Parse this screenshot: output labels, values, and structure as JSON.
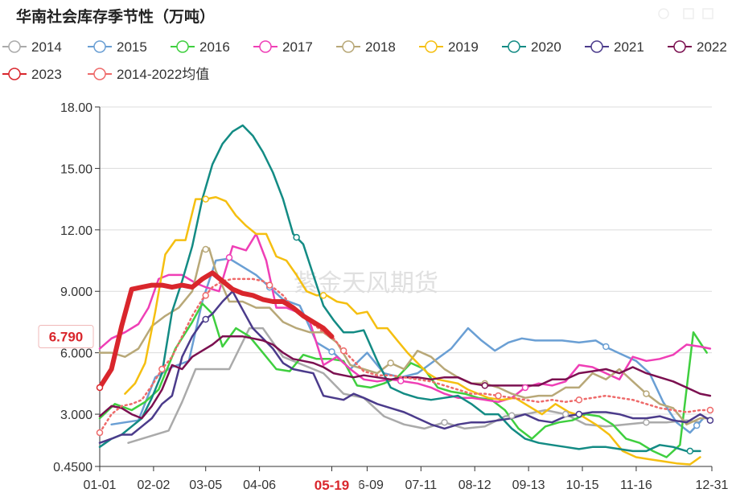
{
  "chart_data": {
    "type": "line",
    "title": "华南社会库存季节性（万吨）",
    "watermark": "紫金天风期货",
    "ylim": [
      0.45,
      18.0
    ],
    "y_ticks": [
      "18.00",
      "15.00",
      "12.00",
      "9.000",
      "6.000",
      "3.000",
      "0.4500"
    ],
    "y_tick_values": [
      18.0,
      15.0,
      12.0,
      9.0,
      6.0,
      3.0,
      0.45
    ],
    "x_tick_labels": [
      "01-01",
      "02-02",
      "03-05",
      "04-06",
      "05-19",
      "06-09",
      "07-11",
      "08-12",
      "09-13",
      "10-15",
      "11-16",
      "12-31"
    ],
    "x_tick_days": [
      1,
      33,
      64,
      96,
      139,
      160,
      192,
      224,
      256,
      288,
      320,
      365
    ],
    "highlight_x_label": "05-19",
    "highlight_y_label": "6.790",
    "legend_row1": [
      "2014",
      "2015",
      "2016",
      "2017",
      "2018",
      "2019",
      "2020",
      "2021",
      "2022"
    ],
    "legend_row2": [
      "2023",
      "2014-2022均值"
    ],
    "series": [
      {
        "name": "2014",
        "color": "#aaaaaa",
        "width": 2.5,
        "dash": false,
        "x": [
          18,
          42,
          50,
          58,
          66,
          78,
          90,
          98,
          110,
          122,
          134,
          146,
          158,
          170,
          182,
          194,
          206,
          218,
          230,
          242,
          254,
          266,
          278,
          290,
          302,
          314,
          326,
          338,
          350,
          358
        ],
        "y": [
          1.6,
          2.2,
          3.6,
          5.2,
          5.2,
          5.2,
          7.2,
          7.2,
          5.8,
          5.4,
          5.0,
          4.0,
          3.8,
          2.9,
          2.5,
          2.3,
          2.6,
          2.3,
          2.4,
          2.9,
          3.0,
          3.2,
          3.0,
          2.5,
          2.4,
          2.5,
          2.6,
          2.6,
          2.7,
          2.6
        ]
      },
      {
        "name": "2015",
        "color": "#6a9fd4",
        "width": 2.5,
        "dash": false,
        "x": [
          8,
          16,
          24,
          34,
          44,
          54,
          62,
          70,
          78,
          86,
          94,
          102,
          110,
          120,
          130,
          140,
          150,
          160,
          170,
          180,
          190,
          200,
          210,
          220,
          228,
          236,
          244,
          252,
          260,
          268,
          276,
          286,
          296,
          304,
          312,
          320,
          328,
          336,
          344,
          352,
          360
        ],
        "y": [
          2.5,
          2.6,
          2.7,
          4.8,
          5.3,
          5.6,
          8.5,
          10.5,
          10.6,
          10.2,
          9.8,
          9.2,
          8.6,
          8.3,
          6.5,
          6.0,
          5.2,
          6.0,
          5.0,
          4.8,
          5.0,
          5.6,
          6.2,
          7.2,
          6.6,
          6.1,
          6.5,
          6.7,
          6.6,
          6.6,
          6.6,
          6.5,
          6.6,
          6.2,
          5.9,
          5.6,
          5.0,
          3.6,
          2.6,
          2.1,
          2.8
        ]
      },
      {
        "name": "2016",
        "color": "#3fcf3f",
        "width": 2.5,
        "dash": false,
        "x": [
          1,
          10,
          20,
          28,
          36,
          46,
          56,
          62,
          68,
          74,
          82,
          90,
          98,
          106,
          114,
          122,
          130,
          138,
          146,
          154,
          162,
          170,
          178,
          186,
          194,
          202,
          210,
          218,
          226,
          234,
          242,
          250,
          258,
          266,
          274,
          282,
          290,
          298,
          306,
          314,
          322,
          330,
          338,
          346,
          354,
          362
        ],
        "y": [
          2.8,
          3.5,
          3.2,
          3.6,
          4.2,
          6.2,
          7.5,
          8.4,
          7.9,
          6.3,
          7.2,
          6.8,
          6.0,
          5.2,
          5.1,
          5.9,
          5.7,
          5.7,
          5.6,
          4.4,
          4.3,
          4.5,
          4.8,
          5.5,
          5.2,
          4.3,
          4.1,
          4.0,
          3.8,
          3.7,
          3.2,
          2.3,
          1.8,
          2.4,
          2.6,
          2.7,
          3.0,
          2.9,
          2.5,
          1.8,
          1.6,
          1.2,
          0.9,
          1.5,
          7.0,
          6.0
        ]
      },
      {
        "name": "2017",
        "color": "#ef3fb6",
        "width": 2.5,
        "dash": false,
        "x": [
          1,
          8,
          16,
          24,
          30,
          36,
          42,
          50,
          58,
          64,
          72,
          80,
          88,
          94,
          100,
          106,
          112,
          118,
          126,
          134,
          142,
          150,
          158,
          166,
          174,
          182,
          190,
          198,
          206,
          214,
          222,
          230,
          238,
          246,
          254,
          262,
          270,
          278,
          286,
          294,
          302,
          310,
          318,
          326,
          334,
          342,
          350,
          358,
          364
        ],
        "y": [
          6.2,
          6.7,
          7.0,
          7.4,
          8.2,
          9.6,
          9.8,
          9.8,
          9.4,
          9.2,
          9.0,
          11.2,
          11.0,
          11.8,
          10.5,
          8.2,
          8.2,
          8.0,
          7.5,
          5.4,
          5.8,
          5.2,
          4.7,
          4.6,
          4.7,
          4.6,
          4.5,
          4.3,
          4.0,
          3.8,
          3.8,
          3.7,
          3.6,
          3.8,
          4.3,
          4.5,
          4.4,
          4.6,
          5.4,
          5.3,
          5.0,
          4.7,
          5.8,
          5.6,
          5.7,
          5.9,
          6.4,
          6.3,
          6.2
        ]
      },
      {
        "name": "2018",
        "color": "#b8a878",
        "width": 2.5,
        "dash": false,
        "x": [
          1,
          8,
          16,
          24,
          32,
          40,
          48,
          56,
          62,
          66,
          70,
          78,
          86,
          94,
          102,
          110,
          118,
          126,
          134,
          142,
          150,
          158,
          166,
          174,
          182,
          190,
          198,
          206,
          214,
          222,
          230,
          238,
          246,
          254,
          262,
          270,
          278,
          286,
          294,
          302,
          310,
          318,
          326,
          334,
          342,
          350,
          358,
          364
        ],
        "y": [
          6.0,
          6.0,
          5.8,
          6.2,
          7.3,
          7.8,
          8.2,
          9.0,
          11.0,
          11.1,
          10.0,
          8.5,
          8.5,
          8.2,
          8.2,
          7.5,
          7.2,
          7.0,
          7.0,
          6.5,
          5.4,
          5.2,
          5.0,
          5.5,
          5.2,
          6.1,
          5.8,
          5.2,
          4.8,
          4.5,
          4.5,
          4.3,
          4.0,
          3.8,
          3.9,
          3.9,
          4.3,
          4.3,
          5.0,
          4.7,
          5.2,
          4.6,
          4.0,
          3.5,
          3.3,
          2.5,
          2.8,
          2.8
        ]
      },
      {
        "name": "2019",
        "color": "#f5bf10",
        "width": 2.5,
        "dash": false,
        "x": [
          16,
          22,
          28,
          34,
          40,
          46,
          52,
          58,
          64,
          70,
          76,
          82,
          88,
          94,
          100,
          106,
          112,
          118,
          124,
          130,
          136,
          142,
          148,
          154,
          160,
          166,
          172,
          178,
          184,
          190,
          196,
          202,
          208,
          214,
          220,
          226,
          232,
          240,
          248,
          256,
          264,
          272,
          280,
          288,
          296,
          304,
          312,
          320,
          328,
          336,
          344,
          352,
          358
        ],
        "y": [
          4.0,
          4.5,
          5.5,
          8.0,
          10.8,
          11.5,
          11.5,
          13.5,
          13.5,
          13.6,
          13.4,
          12.7,
          12.2,
          11.8,
          11.8,
          10.7,
          10.5,
          9.8,
          9.0,
          8.8,
          8.8,
          8.5,
          8.4,
          7.9,
          8.0,
          7.2,
          7.2,
          6.6,
          6.0,
          5.5,
          5.0,
          4.7,
          4.6,
          4.5,
          4.2,
          4.0,
          3.8,
          3.7,
          3.8,
          3.4,
          3.0,
          3.5,
          3.1,
          2.9,
          2.5,
          2.0,
          1.2,
          0.9,
          0.8,
          0.7,
          0.6,
          0.55,
          0.9
        ]
      },
      {
        "name": "2020",
        "color": "#138b84",
        "width": 2.5,
        "dash": false,
        "x": [
          1,
          8,
          14,
          20,
          26,
          32,
          38,
          44,
          50,
          56,
          62,
          68,
          74,
          80,
          86,
          92,
          98,
          104,
          110,
          116,
          122,
          128,
          134,
          140,
          146,
          152,
          158,
          166,
          174,
          182,
          190,
          198,
          206,
          214,
          222,
          230,
          238,
          246,
          254,
          262,
          270,
          278,
          286,
          294,
          302,
          310,
          318,
          326,
          334,
          342,
          350,
          358
        ],
        "y": [
          1.4,
          1.8,
          2.0,
          2.4,
          2.8,
          3.8,
          5.0,
          8.0,
          9.5,
          11.2,
          13.5,
          15.2,
          16.2,
          16.8,
          17.1,
          16.6,
          15.8,
          14.8,
          13.5,
          11.8,
          11.3,
          9.8,
          8.3,
          7.6,
          7.0,
          7.0,
          7.1,
          5.6,
          4.3,
          4.0,
          3.8,
          3.7,
          3.8,
          3.9,
          3.5,
          3.0,
          3.0,
          2.3,
          1.8,
          1.6,
          1.5,
          1.4,
          1.3,
          1.4,
          1.4,
          1.3,
          1.2,
          1.2,
          1.5,
          1.4,
          1.2,
          1.2
        ]
      },
      {
        "name": "2021",
        "color": "#4b3b8b",
        "width": 2.5,
        "dash": false,
        "x": [
          1,
          8,
          14,
          20,
          26,
          32,
          38,
          44,
          50,
          56,
          62,
          68,
          74,
          80,
          86,
          92,
          98,
          104,
          110,
          116,
          122,
          128,
          134,
          140,
          146,
          152,
          158,
          166,
          174,
          182,
          190,
          198,
          206,
          214,
          222,
          230,
          238,
          246,
          254,
          262,
          270,
          278,
          286,
          294,
          302,
          310,
          318,
          326,
          334,
          342,
          350,
          358,
          364
        ],
        "y": [
          1.6,
          1.8,
          2.0,
          2.0,
          2.4,
          2.8,
          3.5,
          3.9,
          5.8,
          6.8,
          7.5,
          7.9,
          8.5,
          9.0,
          8.1,
          7.2,
          6.7,
          6.2,
          5.5,
          5.2,
          5.1,
          5.0,
          3.9,
          3.8,
          3.7,
          4.0,
          3.8,
          3.5,
          3.3,
          3.1,
          2.8,
          2.5,
          2.3,
          2.5,
          2.6,
          2.6,
          2.7,
          2.8,
          3.0,
          2.7,
          2.6,
          2.9,
          3.0,
          3.1,
          3.1,
          3.0,
          2.8,
          2.8,
          2.9,
          2.7,
          2.6,
          3.0,
          2.7
        ]
      },
      {
        "name": "2022",
        "color": "#7b1050",
        "width": 2.5,
        "dash": false,
        "x": [
          1,
          8,
          14,
          20,
          26,
          32,
          38,
          44,
          50,
          56,
          62,
          68,
          74,
          80,
          86,
          92,
          98,
          104,
          110,
          116,
          122,
          128,
          134,
          140,
          146,
          152,
          158,
          166,
          174,
          182,
          190,
          198,
          206,
          214,
          222,
          230,
          238,
          246,
          254,
          262,
          270,
          278,
          286,
          294,
          302,
          310,
          318,
          326,
          334,
          342,
          350,
          358,
          364
        ],
        "y": [
          2.9,
          3.4,
          3.3,
          3.0,
          2.8,
          3.4,
          4.2,
          5.4,
          5.2,
          5.8,
          6.1,
          6.4,
          6.8,
          6.8,
          6.8,
          6.7,
          6.6,
          6.4,
          6.0,
          5.7,
          5.6,
          5.5,
          5.3,
          5.0,
          4.9,
          4.8,
          4.9,
          4.8,
          4.7,
          4.8,
          4.8,
          4.7,
          4.8,
          4.8,
          4.5,
          4.4,
          4.4,
          4.4,
          4.4,
          4.4,
          4.7,
          4.7,
          5.0,
          5.1,
          5.2,
          5.0,
          5.3,
          5.0,
          4.8,
          4.6,
          4.3,
          4.0,
          3.9
        ]
      },
      {
        "name": "2023",
        "color": "#d9262c",
        "width": 6,
        "dash": false,
        "x": [
          1,
          8,
          14,
          20,
          26,
          32,
          38,
          44,
          50,
          56,
          62,
          68,
          74,
          80,
          86,
          92,
          98,
          104,
          110,
          116,
          122,
          128,
          134,
          139
        ],
        "y": [
          4.3,
          5.2,
          7.3,
          9.1,
          9.2,
          9.3,
          9.3,
          9.2,
          9.3,
          9.2,
          9.6,
          9.9,
          9.5,
          9.1,
          8.9,
          8.8,
          8.6,
          8.5,
          8.5,
          8.2,
          7.8,
          7.5,
          7.2,
          6.79
        ]
      },
      {
        "name": "2014-2022均值",
        "color": "#ee6a6a",
        "width": 2.5,
        "dash": true,
        "x": [
          1,
          8,
          14,
          20,
          26,
          32,
          38,
          44,
          50,
          56,
          62,
          68,
          74,
          80,
          86,
          92,
          98,
          104,
          110,
          116,
          122,
          128,
          134,
          140,
          146,
          152,
          158,
          166,
          174,
          182,
          190,
          198,
          206,
          214,
          222,
          230,
          238,
          246,
          254,
          262,
          270,
          278,
          286,
          294,
          302,
          310,
          318,
          326,
          334,
          342,
          350,
          358,
          364
        ],
        "y": [
          2.1,
          3.0,
          3.4,
          3.5,
          3.7,
          4.4,
          5.2,
          5.8,
          6.8,
          7.8,
          8.6,
          9.2,
          9.5,
          9.6,
          9.6,
          9.6,
          9.5,
          9.2,
          8.8,
          8.2,
          7.8,
          7.4,
          7.0,
          6.7,
          6.1,
          5.6,
          5.1,
          4.9,
          4.9,
          4.8,
          4.7,
          4.6,
          4.4,
          4.2,
          4.0,
          4.0,
          3.9,
          3.8,
          3.7,
          3.6,
          3.7,
          3.6,
          3.7,
          3.8,
          3.9,
          3.8,
          3.7,
          3.5,
          3.3,
          3.2,
          3.1,
          3.2,
          3.2
        ]
      }
    ],
    "markers": [
      {
        "series": "2014",
        "x": [
          206,
          246,
          278,
          326
        ]
      },
      {
        "series": "2015",
        "x": [
          102,
          139,
          302,
          356
        ]
      },
      {
        "series": "2017",
        "x": [
          78,
          180,
          254
        ]
      },
      {
        "series": "2018",
        "x": [
          64,
          174,
          230,
          326
        ]
      },
      {
        "series": "2019",
        "x": [
          64,
          134
        ]
      },
      {
        "series": "2020",
        "x": [
          118,
          352
        ]
      },
      {
        "series": "2021",
        "x": [
          64,
          286,
          364
        ]
      },
      {
        "series": "2022",
        "x": [
          230
        ]
      },
      {
        "series": "2023",
        "x": [
          1
        ]
      },
      {
        "series": "2014-2022均值",
        "x": [
          1,
          38,
          64,
          102,
          146,
          238,
          286,
          364
        ]
      }
    ]
  }
}
